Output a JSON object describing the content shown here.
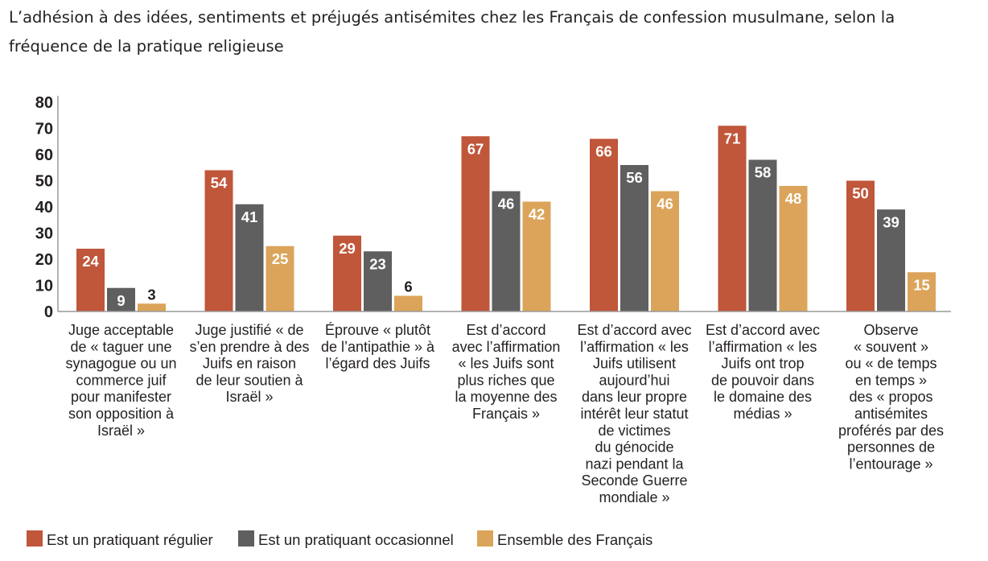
{
  "title": "L’adhésion à des idées, sentiments et préjugés antisémites chez les Français de confession musulmane, selon la fréquence de la pratique religieuse",
  "colors": {
    "pratiquant_regulier": "#c0563a",
    "pratiquant_occasionnel": "#5f5f5f",
    "ensemble_des_francais": "#dba45a",
    "axis": "#9a9a9a",
    "text": "#231f20"
  },
  "chart_data": {
    "type": "bar",
    "title": "L’adhésion à des idées, sentiments et préjugés antisémites chez les Français de confession musulmane, selon la fréquence de la pratique religieuse",
    "xlabel": "",
    "ylabel": "",
    "ylim": [
      0,
      80
    ],
    "yticks": [
      0,
      10,
      20,
      30,
      40,
      50,
      60,
      70,
      80
    ],
    "grid": false,
    "legend_position": "bottom-left",
    "categories": [
      "Juge acceptable de « taguer une synagogue ou un commerce juif pour manifester son opposition à Israël »",
      "Juge justifié « de s’en prendre à des Juifs en raison de leur soutien à Israël »",
      "Éprouve « plutôt de l’antipathie » à l’égard des Juifs",
      "Est d’accord avec l’affirmation « les Juifs sont plus riches que la moyenne des Français »",
      "Est d’accord avec l’affirmation « les Juifs utilisent aujourd’hui dans leur propre intérêt leur statut de victimes du génocide nazi pendant la Seconde Guerre mondiale »",
      "Est d’accord avec l’affirmation « les Juifs ont trop de pouvoir dans le domaine des médias »",
      "Observe « souvent » ou « de temps en temps » des « propos antisémites proférés par des personnes de l’entourage »"
    ],
    "category_lines": [
      [
        "Juge acceptable",
        "de « taguer une",
        "synagogue ou un",
        "commerce juif",
        "pour manifester",
        "son opposition à",
        "Israël »"
      ],
      [
        "Juge justifié « de",
        "s’en prendre à des",
        "Juifs en raison",
        "de leur soutien à",
        "Israël »"
      ],
      [
        "Éprouve « plutôt",
        "de l’antipathie » à",
        "l’égard des Juifs"
      ],
      [
        "Est d’accord",
        "avec l’affirmation",
        "« les Juifs sont",
        "plus riches que",
        "la moyenne des",
        "Français »"
      ],
      [
        "Est d’accord avec",
        "l’affirmation « les",
        "Juifs utilisent",
        "aujourd’hui",
        "dans leur propre",
        "intérêt leur statut",
        "de victimes",
        "du génocide",
        "nazi pendant la",
        "Seconde Guerre",
        "mondiale »"
      ],
      [
        "Est d’accord avec",
        "l’affirmation « les",
        "Juifs ont trop",
        "de pouvoir dans",
        "le domaine des",
        "médias »"
      ],
      [
        "Observe",
        "« souvent »",
        "ou « de temps",
        "en temps »",
        "des « propos",
        "antisémites",
        "proférés par des",
        "personnes de",
        "l’entourage »"
      ]
    ],
    "series": [
      {
        "name": "Est un pratiquant régulier",
        "color": "#c0563a",
        "values": [
          24,
          54,
          29,
          67,
          66,
          71,
          50
        ]
      },
      {
        "name": "Est un pratiquant occasionnel",
        "color": "#5f5f5f",
        "values": [
          9,
          41,
          23,
          46,
          56,
          58,
          39
        ]
      },
      {
        "name": "Ensemble des Français",
        "color": "#dba45a",
        "values": [
          3,
          25,
          6,
          42,
          46,
          48,
          15
        ]
      }
    ]
  }
}
